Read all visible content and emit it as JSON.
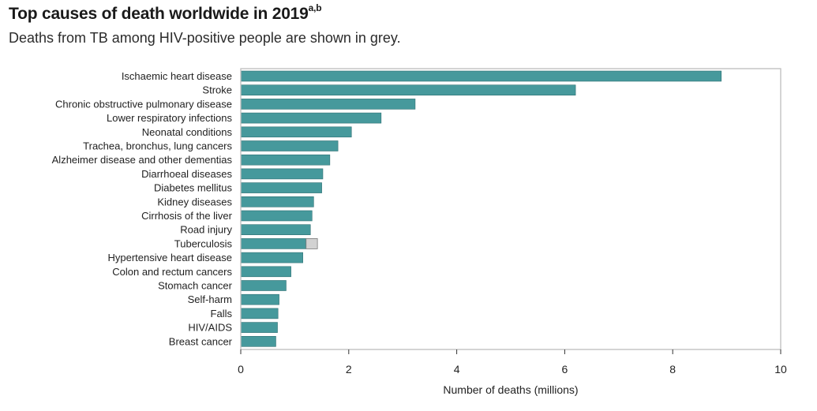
{
  "header": {
    "title": "Top causes of death worldwide in 2019",
    "title_superscript": "a,b",
    "subtitle": "Deaths from TB among HIV-positive people are shown in grey."
  },
  "colors": {
    "bar": "#46999c",
    "bar_stroke": "#2f7073",
    "secondary_bar": "#d2d2d2",
    "secondary_stroke": "#7a7a7a",
    "frame": "#bdbdbd",
    "axis": "#333333"
  },
  "chart_data": {
    "type": "bar",
    "orientation": "horizontal",
    "categories": [
      "Ischaemic heart disease",
      "Stroke",
      "Chronic obstructive pulmonary disease",
      "Lower respiratory infections",
      "Neonatal conditions",
      "Trachea, bronchus, lung cancers",
      "Alzheimer disease and other dementias",
      "Diarrhoeal diseases",
      "Diabetes mellitus",
      "Kidney diseases",
      "Cirrhosis of the liver",
      "Road injury",
      "Tuberculosis",
      "Hypertensive heart disease",
      "Colon and rectum cancers",
      "Stomach cancer",
      "Self-harm",
      "Falls",
      "HIV/AIDS",
      "Breast cancer"
    ],
    "series": [
      {
        "values": [
          8.9,
          6.2,
          3.23,
          2.6,
          2.05,
          1.8,
          1.65,
          1.52,
          1.5,
          1.35,
          1.32,
          1.29,
          1.21,
          1.15,
          0.93,
          0.84,
          0.71,
          0.69,
          0.68,
          0.65
        ]
      },
      {
        "values": [
          0,
          0,
          0,
          0,
          0,
          0,
          0,
          0,
          0,
          0,
          0,
          0,
          0.21,
          0,
          0,
          0,
          0,
          0,
          0,
          0
        ]
      }
    ],
    "stacked": true,
    "xlabel": "Number of deaths (millions)",
    "ylabel": "",
    "xlim": [
      0,
      10
    ],
    "xticks": [
      0,
      2,
      4,
      6,
      8,
      10
    ],
    "xtick_labels": [
      "0",
      "2",
      "4",
      "6",
      "8",
      "10"
    ],
    "grid": false,
    "legend": "none"
  }
}
